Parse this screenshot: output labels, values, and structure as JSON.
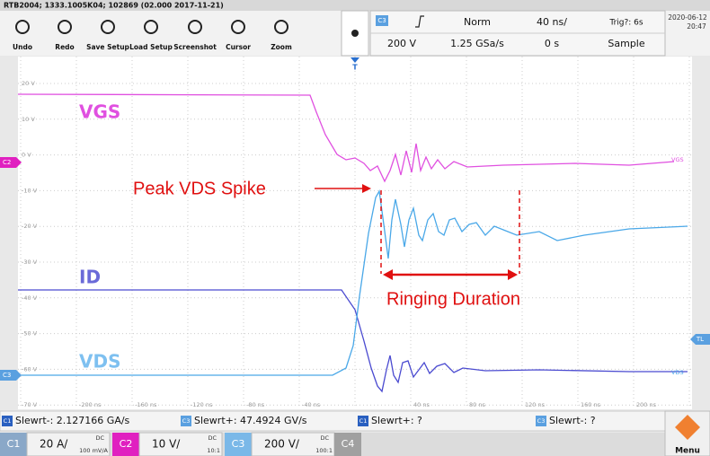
{
  "title_bar": "RTB2004; 1333.1005K04; 102869 (02.000 2017-11-21)",
  "toolbar": {
    "buttons": [
      "Undo",
      "Redo",
      "Save Setup",
      "Load Setup",
      "Screenshot",
      "Cursor",
      "Zoom"
    ]
  },
  "settings": {
    "channel": "C3",
    "trigger_mode": "Norm",
    "time_scale": "40 ns/",
    "trigger_status": "Trig?: 6s",
    "date": "2020-06-12",
    "time": "20:47",
    "level": "200 V",
    "sample_rate": "1.25 GSa/s",
    "offset": "0 s",
    "acquisition": "Sample"
  },
  "graticule": {
    "y_labels": [
      "20 V",
      "10 V",
      "0 V",
      "-10 V",
      "-20 V",
      "-30 V",
      "-40 V",
      "-50 V",
      "-60 V",
      "-70 V"
    ],
    "x_labels": [
      "-200 ns",
      "-160 ns",
      "-120 ns",
      "-80 ns",
      "-40 ns",
      "40 ns",
      "80 ns",
      "120 ns",
      "160 ns",
      "200 ns"
    ],
    "trace_labels": [
      "VGS",
      "ID",
      "VDS"
    ],
    "end_labels": [
      "VGS",
      "VDS"
    ],
    "markers": {
      "c2": "C2",
      "c3": "C3",
      "trigger_level": "TL",
      "trigger_position": "T"
    }
  },
  "annotations": {
    "peak": "Peak VDS Spike",
    "ringing": "Ringing Duration"
  },
  "measurements": [
    {
      "channel": "C1",
      "text": "Slewrt-: 2.127166 GA/s"
    },
    {
      "channel": "C3",
      "text": "Slewrt+: 47.4924 GV/s"
    },
    {
      "channel": "C1",
      "text": "Slewrt+: ?"
    },
    {
      "channel": "C3",
      "text": "Slewrt-: ?"
    }
  ],
  "channels": [
    {
      "name": "C1",
      "scale": "20 A/",
      "coupling": "DC",
      "probe": "100 mV/A"
    },
    {
      "name": "C2",
      "scale": "10 V/",
      "coupling": "DC",
      "probe": "10:1"
    },
    {
      "name": "C3",
      "scale": "200 V/",
      "coupling": "DC",
      "probe": "100:1"
    },
    {
      "name": "C4"
    }
  ],
  "menu": "Menu"
}
